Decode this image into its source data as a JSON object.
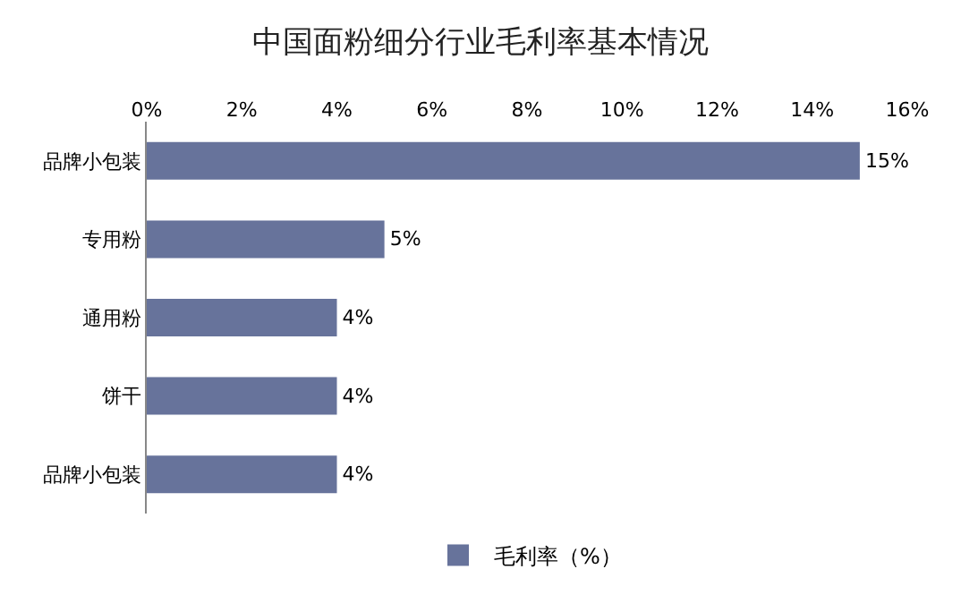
{
  "chart_data": {
    "type": "bar",
    "orientation": "horizontal",
    "title": "中国面粉细分行业毛利率基本情况",
    "categories": [
      "品牌小包装",
      "专用粉",
      "通用粉",
      "饼干",
      "品牌小包装"
    ],
    "series": [
      {
        "name": "毛利率（%）",
        "color": "#67739b",
        "values": [
          15,
          5,
          4,
          4,
          4
        ],
        "value_labels": [
          "15%",
          "5%",
          "4%",
          "4%",
          "4%"
        ]
      }
    ],
    "xlim": [
      0,
      16
    ],
    "xticks": [
      {
        "value": 0,
        "label": "0%"
      },
      {
        "value": 2,
        "label": "2%"
      },
      {
        "value": 4,
        "label": "4%"
      },
      {
        "value": 6,
        "label": "6%"
      },
      {
        "value": 8,
        "label": "8%"
      },
      {
        "value": 10,
        "label": "10%"
      },
      {
        "value": 12,
        "label": "12%"
      },
      {
        "value": 14,
        "label": "14%"
      },
      {
        "value": 16,
        "label": "16%"
      }
    ],
    "grid": false,
    "legend": "bottom"
  }
}
